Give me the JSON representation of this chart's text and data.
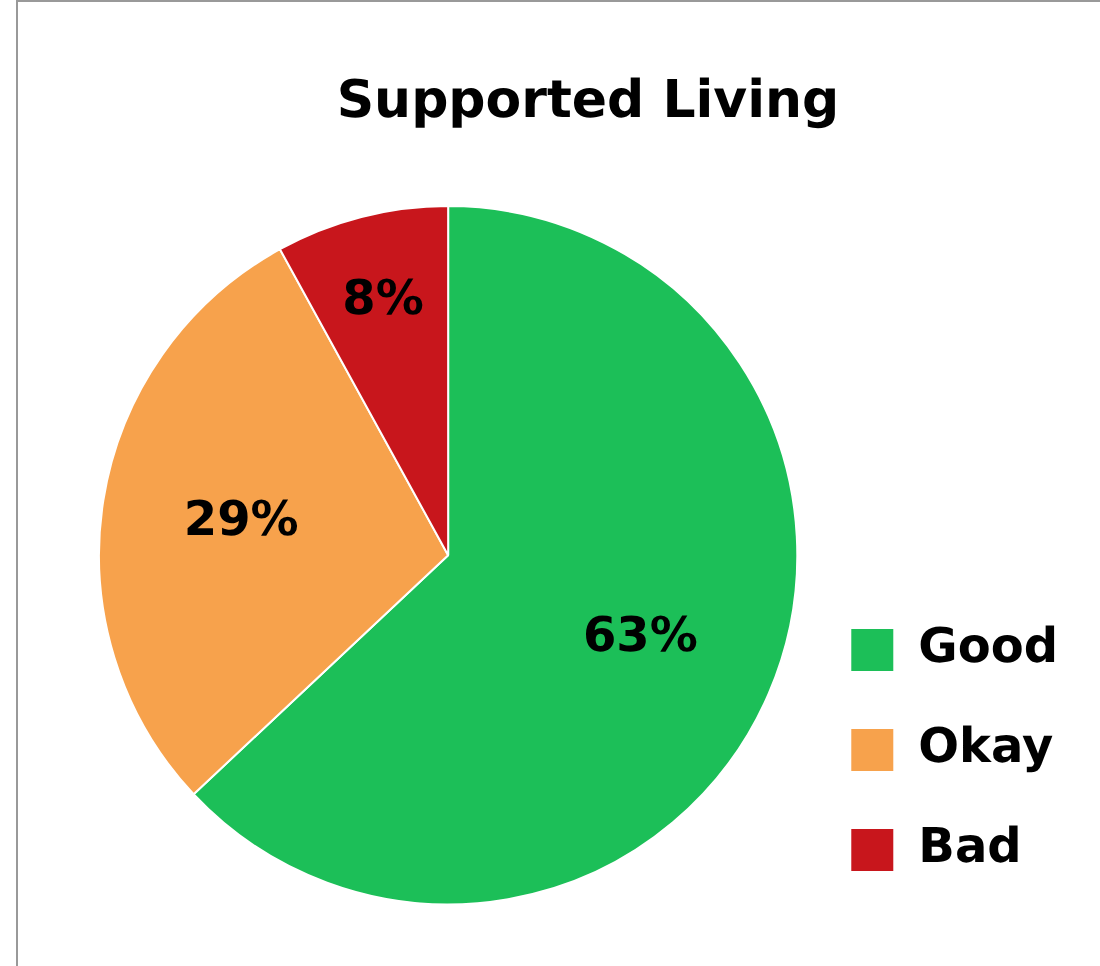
{
  "chart_data": {
    "type": "pie",
    "title": "Supported Living",
    "categories": [
      "Good",
      "Okay",
      "Bad"
    ],
    "values": [
      63,
      29,
      8
    ],
    "colors": [
      "#1cbf58",
      "#f7a24c",
      "#c8161c"
    ],
    "value_labels": [
      "63%",
      "29%",
      "8%"
    ],
    "legend": "bottom right"
  }
}
